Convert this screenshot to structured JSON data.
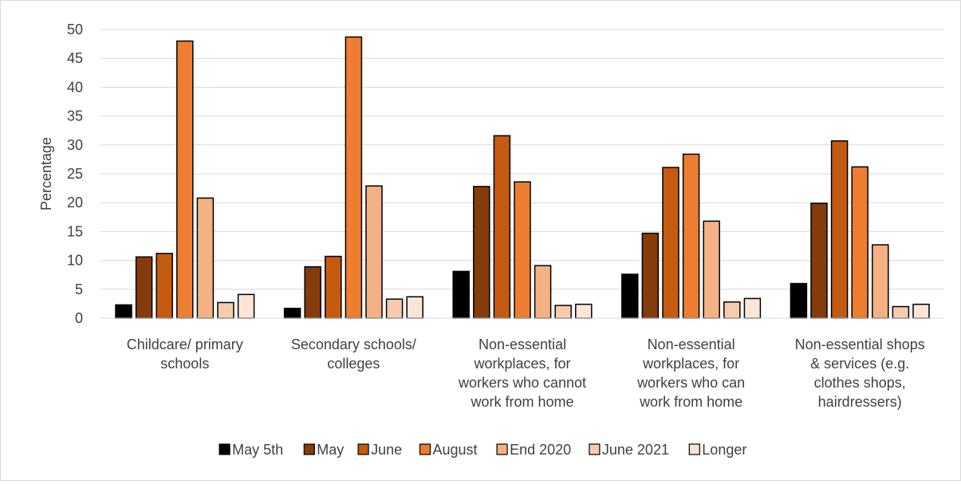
{
  "chart_data": {
    "type": "bar",
    "title": "",
    "xlabel": "",
    "ylabel": "Percentage",
    "ylim": [
      0,
      50
    ],
    "yticks": [
      0,
      5,
      10,
      15,
      20,
      25,
      30,
      35,
      40,
      45,
      50
    ],
    "grid": true,
    "legend_position": "bottom",
    "categories": [
      [
        "Childcare/ primary",
        "schools"
      ],
      [
        "Secondary schools/",
        "colleges"
      ],
      [
        "Non-essential",
        "workplaces, for",
        "workers who cannot",
        "work from home"
      ],
      [
        "Non-essential",
        "workplaces, for",
        "workers who can",
        "work from home"
      ],
      [
        "Non-essential shops",
        "& services (e.g.",
        "clothes shops,",
        "hairdressers)"
      ]
    ],
    "series": [
      {
        "name": "May 5th",
        "color": "#000000",
        "values": [
          2.3,
          1.7,
          8.1,
          7.6,
          6.0
        ]
      },
      {
        "name": "May",
        "color": "#843c0c",
        "values": [
          10.6,
          8.9,
          22.8,
          14.7,
          19.9
        ]
      },
      {
        "name": "June",
        "color": "#c55a11",
        "values": [
          11.2,
          10.7,
          31.6,
          26.1,
          30.7
        ]
      },
      {
        "name": "August",
        "color": "#ed7d31",
        "values": [
          48.0,
          48.7,
          23.6,
          28.4,
          26.2
        ]
      },
      {
        "name": "End 2020",
        "color": "#f4b183",
        "values": [
          20.8,
          22.9,
          9.1,
          16.8,
          12.7
        ]
      },
      {
        "name": "June 2021",
        "color": "#f8cbad",
        "values": [
          2.7,
          3.3,
          2.2,
          2.8,
          2.0
        ]
      },
      {
        "name": "Longer",
        "color": "#fbe5d6",
        "values": [
          4.1,
          3.7,
          2.4,
          3.4,
          2.4
        ]
      }
    ]
  }
}
